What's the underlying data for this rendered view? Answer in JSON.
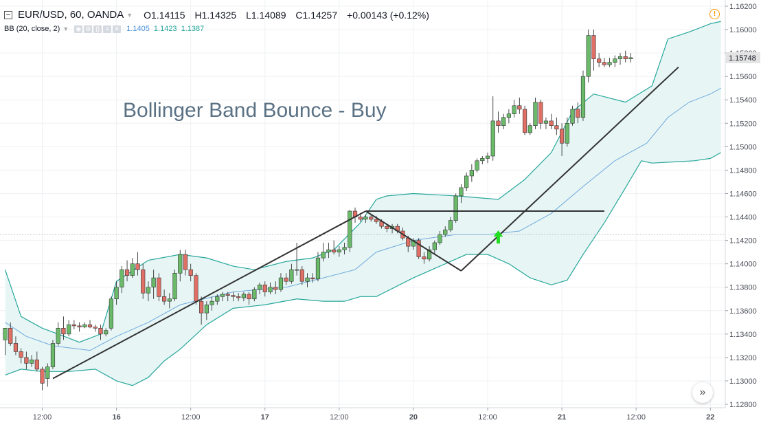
{
  "header": {
    "symbol": "EUR/USD, 60, OANDA",
    "open": "O1.14115",
    "high": "H1.14325",
    "low": "L1.14089",
    "close": "C1.14257",
    "change": "+0.00143 (+0.12%)",
    "indicator_label": "BB (20, close, 2)",
    "bb_mid": "1.1405",
    "bb_upper": "1.1423",
    "bb_lower": "1.1387",
    "warning_icon": "warning-icon",
    "scroll_icon": "fast-forward-icon"
  },
  "colors": {
    "up": "#6aba6a",
    "down": "#e06f65",
    "band": "#26a69a",
    "basis": "#6fa8dc",
    "band_fill": "#e7f6f5",
    "trendline": "#333333",
    "arrow": "#22dd22",
    "annotation": "#5a7184",
    "price_label_bg": "#e3e3e3"
  },
  "chart_data": {
    "type": "candlestick",
    "title": "Bollinger Band Bounce - Buy",
    "last_price_label": "1.15748",
    "ylim": [
      1.1275,
      1.163
    ],
    "y_ticks": [
      "1.16200",
      "1.16000",
      "1.15800",
      "1.15600",
      "1.15400",
      "1.15200",
      "1.15000",
      "1.14800",
      "1.14600",
      "1.14400",
      "1.14200",
      "1.14000",
      "1.13800",
      "1.13600",
      "1.13400",
      "1.13200",
      "1.13000",
      "1.12800"
    ],
    "x_ticks": [
      {
        "label": "12:00",
        "i": 7
      },
      {
        "label": "16",
        "i": 21
      },
      {
        "label": "12:00",
        "i": 35
      },
      {
        "label": "17",
        "i": 49
      },
      {
        "label": "12:00",
        "i": 63
      },
      {
        "label": "20",
        "i": 77
      },
      {
        "label": "12:00",
        "i": 91
      },
      {
        "label": "21",
        "i": 105
      },
      {
        "label": "12:00",
        "i": 119
      },
      {
        "label": "22",
        "i": 133
      }
    ],
    "candles": [
      [
        1.1335,
        1.1345,
        1.1322,
        1.1345
      ],
      [
        1.1345,
        1.135,
        1.133,
        1.1332
      ],
      [
        1.1332,
        1.1338,
        1.1322,
        1.1325
      ],
      [
        1.1325,
        1.1328,
        1.1315,
        1.132
      ],
      [
        1.132,
        1.1325,
        1.131,
        1.1315
      ],
      [
        1.1315,
        1.1322,
        1.1312,
        1.1318
      ],
      [
        1.1318,
        1.1325,
        1.1308,
        1.131
      ],
      [
        1.131,
        1.1312,
        1.1292,
        1.1298
      ],
      [
        1.1302,
        1.1315,
        1.1295,
        1.1312
      ],
      [
        1.1312,
        1.1335,
        1.131,
        1.1332
      ],
      [
        1.1332,
        1.135,
        1.133,
        1.1345
      ],
      [
        1.1345,
        1.1355,
        1.1335,
        1.134
      ],
      [
        1.134,
        1.1352,
        1.1338,
        1.1348
      ],
      [
        1.1348,
        1.1352,
        1.1344,
        1.1347
      ],
      [
        1.1347,
        1.135,
        1.1342,
        1.1346
      ],
      [
        1.1346,
        1.135,
        1.1345,
        1.1348
      ],
      [
        1.1348,
        1.1352,
        1.1345,
        1.1346
      ],
      [
        1.1346,
        1.1348,
        1.1342,
        1.1345
      ],
      [
        1.1345,
        1.1348,
        1.1335,
        1.134
      ],
      [
        1.134,
        1.1345,
        1.1338,
        1.1343
      ],
      [
        1.1345,
        1.1372,
        1.1343,
        1.137
      ],
      [
        1.137,
        1.1385,
        1.1365,
        1.138
      ],
      [
        1.138,
        1.1398,
        1.1375,
        1.1395
      ],
      [
        1.1395,
        1.1403,
        1.1385,
        1.139
      ],
      [
        1.139,
        1.1405,
        1.1388,
        1.14
      ],
      [
        1.14,
        1.141,
        1.139,
        1.1395
      ],
      [
        1.1395,
        1.14,
        1.137,
        1.1375
      ],
      [
        1.1375,
        1.1385,
        1.1368,
        1.138
      ],
      [
        1.138,
        1.1395,
        1.137,
        1.1388
      ],
      [
        1.1388,
        1.1392,
        1.1368,
        1.1372
      ],
      [
        1.1372,
        1.1378,
        1.1365,
        1.1368
      ],
      [
        1.1368,
        1.1375,
        1.1362,
        1.137
      ],
      [
        1.137,
        1.1395,
        1.1368,
        1.1392
      ],
      [
        1.1392,
        1.1412,
        1.1385,
        1.1408
      ],
      [
        1.1408,
        1.1412,
        1.139,
        1.1395
      ],
      [
        1.1395,
        1.14,
        1.1385,
        1.139
      ],
      [
        1.139,
        1.1392,
        1.1365,
        1.1368
      ],
      [
        1.1368,
        1.1372,
        1.1348,
        1.1358
      ],
      [
        1.1358,
        1.1368,
        1.1352,
        1.1365
      ],
      [
        1.1365,
        1.1372,
        1.136,
        1.1368
      ],
      [
        1.1368,
        1.1374,
        1.1365,
        1.1372
      ],
      [
        1.1372,
        1.1376,
        1.1368,
        1.1374
      ],
      [
        1.1374,
        1.1376,
        1.1368,
        1.1373
      ],
      [
        1.1373,
        1.1376,
        1.1368,
        1.1372
      ],
      [
        1.1372,
        1.1375,
        1.1368,
        1.1371
      ],
      [
        1.1371,
        1.1376,
        1.1368,
        1.1374
      ],
      [
        1.1374,
        1.1376,
        1.1365,
        1.137
      ],
      [
        1.137,
        1.138,
        1.1368,
        1.1378
      ],
      [
        1.1378,
        1.1384,
        1.1374,
        1.1382
      ],
      [
        1.1382,
        1.1385,
        1.1372,
        1.1376
      ],
      [
        1.1376,
        1.1384,
        1.1374,
        1.138
      ],
      [
        1.138,
        1.1385,
        1.1374,
        1.1378
      ],
      [
        1.1378,
        1.1392,
        1.1376,
        1.1388
      ],
      [
        1.1388,
        1.1392,
        1.1382,
        1.1385
      ],
      [
        1.1385,
        1.14,
        1.1383,
        1.1395
      ],
      [
        1.1395,
        1.1418,
        1.139,
        1.1395
      ],
      [
        1.1395,
        1.1398,
        1.1382,
        1.1385
      ],
      [
        1.1385,
        1.1392,
        1.138,
        1.1388
      ],
      [
        1.1388,
        1.1392,
        1.1384,
        1.1387
      ],
      [
        1.1387,
        1.141,
        1.1385,
        1.1405
      ],
      [
        1.1405,
        1.1418,
        1.1402,
        1.141
      ],
      [
        1.141,
        1.1418,
        1.1405,
        1.1412
      ],
      [
        1.1412,
        1.142,
        1.1408,
        1.141
      ],
      [
        1.141,
        1.1415,
        1.1406,
        1.1412
      ],
      [
        1.1412,
        1.1418,
        1.1408,
        1.1414
      ],
      [
        1.1414,
        1.1446,
        1.141,
        1.1445
      ],
      [
        1.1445,
        1.1448,
        1.1435,
        1.144
      ],
      [
        1.144,
        1.1442,
        1.1436,
        1.1438
      ],
      [
        1.1438,
        1.1442,
        1.1435,
        1.144
      ],
      [
        1.144,
        1.1442,
        1.1436,
        1.1438
      ],
      [
        1.1438,
        1.1441,
        1.1434,
        1.1436
      ],
      [
        1.1436,
        1.1438,
        1.143,
        1.1432
      ],
      [
        1.1432,
        1.1434,
        1.1427,
        1.143
      ],
      [
        1.143,
        1.1434,
        1.1426,
        1.1432
      ],
      [
        1.1432,
        1.1434,
        1.1426,
        1.1428
      ],
      [
        1.1428,
        1.1431,
        1.142,
        1.1422
      ],
      [
        1.1422,
        1.1424,
        1.141,
        1.1415
      ],
      [
        1.1415,
        1.1422,
        1.1412,
        1.142
      ],
      [
        1.142,
        1.1422,
        1.1404,
        1.1406
      ],
      [
        1.1406,
        1.141,
        1.14,
        1.1404
      ],
      [
        1.1404,
        1.1415,
        1.1402,
        1.1412
      ],
      [
        1.1412,
        1.142,
        1.1408,
        1.1418
      ],
      [
        1.1418,
        1.1428,
        1.1416,
        1.1425
      ],
      [
        1.1425,
        1.1432,
        1.1423,
        1.1429
      ],
      [
        1.1429,
        1.144,
        1.1427,
        1.1437
      ],
      [
        1.1437,
        1.146,
        1.1435,
        1.1458
      ],
      [
        1.1458,
        1.1468,
        1.1452,
        1.1465
      ],
      [
        1.1465,
        1.1478,
        1.1462,
        1.1475
      ],
      [
        1.1475,
        1.1485,
        1.147,
        1.148
      ],
      [
        1.148,
        1.149,
        1.1478,
        1.1488
      ],
      [
        1.1488,
        1.1492,
        1.1485,
        1.149
      ],
      [
        1.149,
        1.1495,
        1.1486,
        1.1492
      ],
      [
        1.1492,
        1.1543,
        1.1488,
        1.1522
      ],
      [
        1.1522,
        1.153,
        1.1512,
        1.1518
      ],
      [
        1.1518,
        1.1528,
        1.1515,
        1.1525
      ],
      [
        1.1525,
        1.1532,
        1.152,
        1.1528
      ],
      [
        1.1528,
        1.154,
        1.1525,
        1.1535
      ],
      [
        1.1535,
        1.1542,
        1.1528,
        1.1532
      ],
      [
        1.1532,
        1.1535,
        1.151,
        1.1512
      ],
      [
        1.1512,
        1.152,
        1.151,
        1.1518
      ],
      [
        1.1518,
        1.1542,
        1.1515,
        1.1538
      ],
      [
        1.1538,
        1.154,
        1.1515,
        1.152
      ],
      [
        1.152,
        1.1525,
        1.1515,
        1.1522
      ],
      [
        1.1522,
        1.1528,
        1.1515,
        1.1518
      ],
      [
        1.1518,
        1.1525,
        1.151,
        1.1515
      ],
      [
        1.1515,
        1.152,
        1.1492,
        1.1503
      ],
      [
        1.1503,
        1.1525,
        1.15,
        1.152
      ],
      [
        1.152,
        1.1535,
        1.1518,
        1.1532
      ],
      [
        1.1532,
        1.1538,
        1.152,
        1.1525
      ],
      [
        1.1525,
        1.1565,
        1.1522,
        1.156
      ],
      [
        1.156,
        1.16,
        1.1555,
        1.1595
      ],
      [
        1.1595,
        1.16,
        1.1565,
        1.1575
      ],
      [
        1.1575,
        1.158,
        1.1568,
        1.1572
      ],
      [
        1.1572,
        1.1576,
        1.1568,
        1.157
      ],
      [
        1.157,
        1.1576,
        1.1568,
        1.1572
      ],
      [
        1.1572,
        1.1578,
        1.1568,
        1.1575
      ],
      [
        1.1575,
        1.158,
        1.157,
        1.1577
      ],
      [
        1.1577,
        1.1582,
        1.1572,
        1.1575
      ],
      [
        1.1575,
        1.158,
        1.1572,
        1.1576
      ]
    ],
    "bb_upper": [
      [
        0,
        1.1395
      ],
      [
        3,
        1.1355
      ],
      [
        7,
        1.1345
      ],
      [
        10,
        1.134
      ],
      [
        14,
        1.1333
      ],
      [
        18,
        1.134
      ],
      [
        21,
        1.1385
      ],
      [
        27,
        1.1403
      ],
      [
        33,
        1.1408
      ],
      [
        38,
        1.1405
      ],
      [
        43,
        1.1398
      ],
      [
        47,
        1.1395
      ],
      [
        53,
        1.1402
      ],
      [
        58,
        1.1405
      ],
      [
        62,
        1.1412
      ],
      [
        67,
        1.1435
      ],
      [
        70,
        1.1455
      ],
      [
        72,
        1.1458
      ],
      [
        77,
        1.146
      ],
      [
        85,
        1.1458
      ],
      [
        93,
        1.1455
      ],
      [
        98,
        1.1472
      ],
      [
        103,
        1.1495
      ],
      [
        107,
        1.153
      ],
      [
        111,
        1.1545
      ],
      [
        117,
        1.1538
      ],
      [
        122,
        1.1552
      ],
      [
        125,
        1.1592
      ],
      [
        129,
        1.1598
      ],
      [
        133,
        1.1605
      ],
      [
        135,
        1.1607
      ]
    ],
    "bb_lower": [
      [
        0,
        1.1305
      ],
      [
        3,
        1.131
      ],
      [
        7,
        1.1308
      ],
      [
        12,
        1.1308
      ],
      [
        17,
        1.131
      ],
      [
        21,
        1.13
      ],
      [
        24,
        1.1296
      ],
      [
        27,
        1.1303
      ],
      [
        30,
        1.1317
      ],
      [
        33,
        1.1327
      ],
      [
        38,
        1.1348
      ],
      [
        43,
        1.1362
      ],
      [
        49,
        1.1365
      ],
      [
        55,
        1.137
      ],
      [
        60,
        1.1368
      ],
      [
        64,
        1.1368
      ],
      [
        67,
        1.1372
      ],
      [
        70,
        1.1372
      ],
      [
        77,
        1.1388
      ],
      [
        83,
        1.14
      ],
      [
        87,
        1.1408
      ],
      [
        91,
        1.1408
      ],
      [
        95,
        1.14
      ],
      [
        99,
        1.1388
      ],
      [
        103,
        1.1382
      ],
      [
        106,
        1.1386
      ],
      [
        109,
        1.1408
      ],
      [
        113,
        1.1435
      ],
      [
        117,
        1.1465
      ],
      [
        120,
        1.1488
      ],
      [
        122,
        1.1486
      ],
      [
        126,
        1.1487
      ],
      [
        130,
        1.1488
      ],
      [
        133,
        1.149
      ],
      [
        135,
        1.1495
      ]
    ],
    "bb_mid": [
      [
        0,
        1.135
      ],
      [
        4,
        1.1338
      ],
      [
        9,
        1.133
      ],
      [
        16,
        1.1326
      ],
      [
        21,
        1.1338
      ],
      [
        27,
        1.135
      ],
      [
        33,
        1.1365
      ],
      [
        43,
        1.1376
      ],
      [
        53,
        1.138
      ],
      [
        60,
        1.1388
      ],
      [
        66,
        1.1395
      ],
      [
        70,
        1.141
      ],
      [
        77,
        1.142
      ],
      [
        85,
        1.1425
      ],
      [
        91,
        1.1425
      ],
      [
        97,
        1.1428
      ],
      [
        103,
        1.1443
      ],
      [
        109,
        1.1466
      ],
      [
        115,
        1.1488
      ],
      [
        121,
        1.1503
      ],
      [
        125,
        1.1525
      ],
      [
        129,
        1.1538
      ],
      [
        133,
        1.1545
      ],
      [
        135,
        1.155
      ]
    ],
    "annotations": {
      "triangle": [
        [
          9,
          1.1302
        ],
        [
          68,
          1.1445
        ],
        [
          86,
          1.1394
        ]
      ],
      "resistance": {
        "from": 68,
        "to": 113,
        "price": 1.1445
      },
      "uptrend": {
        "from": 86,
        "to": 127,
        "p0": 1.1394,
        "p1": 1.1568
      },
      "buy_arrow": {
        "i": 93,
        "price": 1.1422
      }
    }
  }
}
